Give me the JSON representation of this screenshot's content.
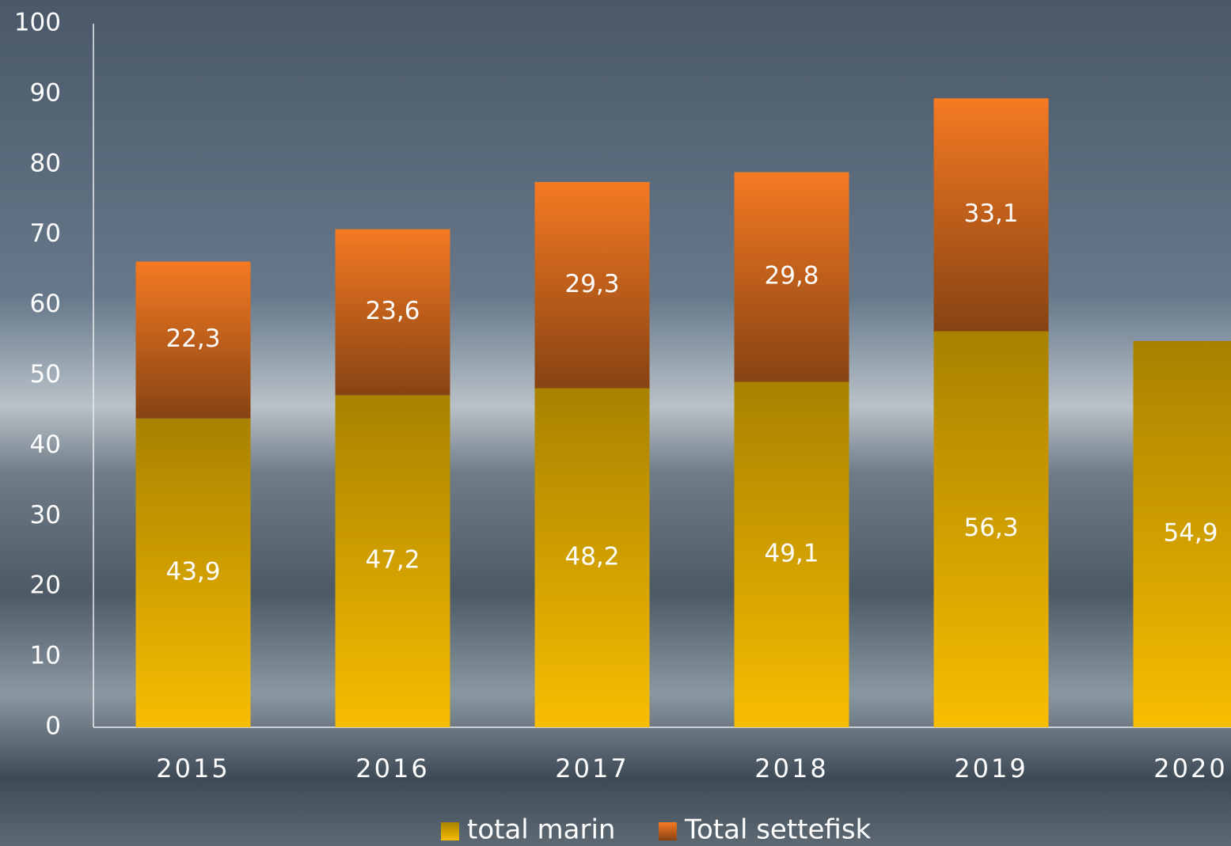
{
  "chart_data": {
    "type": "stacked_bar",
    "categories": [
      "2015",
      "2016",
      "2017",
      "2018",
      "2019",
      "2020"
    ],
    "series": [
      {
        "name": "total marin",
        "color": "#f7bd00",
        "values": [
          43.9,
          47.2,
          48.2,
          49.1,
          56.3,
          54.9
        ],
        "value_labels": [
          "43,9",
          "47,2",
          "48,2",
          "49,1",
          "56,3",
          "54,9"
        ]
      },
      {
        "name": "Total settefisk",
        "color": "#f57a22",
        "values": [
          22.3,
          23.6,
          29.3,
          29.8,
          33.1,
          null
        ],
        "value_labels": [
          "22,3",
          "23,6",
          "29,3",
          "29,8",
          "33,1",
          null
        ]
      }
    ],
    "ylim": [
      0,
      100
    ],
    "yticks": [
      0,
      10,
      20,
      30,
      40,
      50,
      60,
      70,
      80,
      90,
      100
    ],
    "grid": false,
    "legend": "bottom"
  }
}
